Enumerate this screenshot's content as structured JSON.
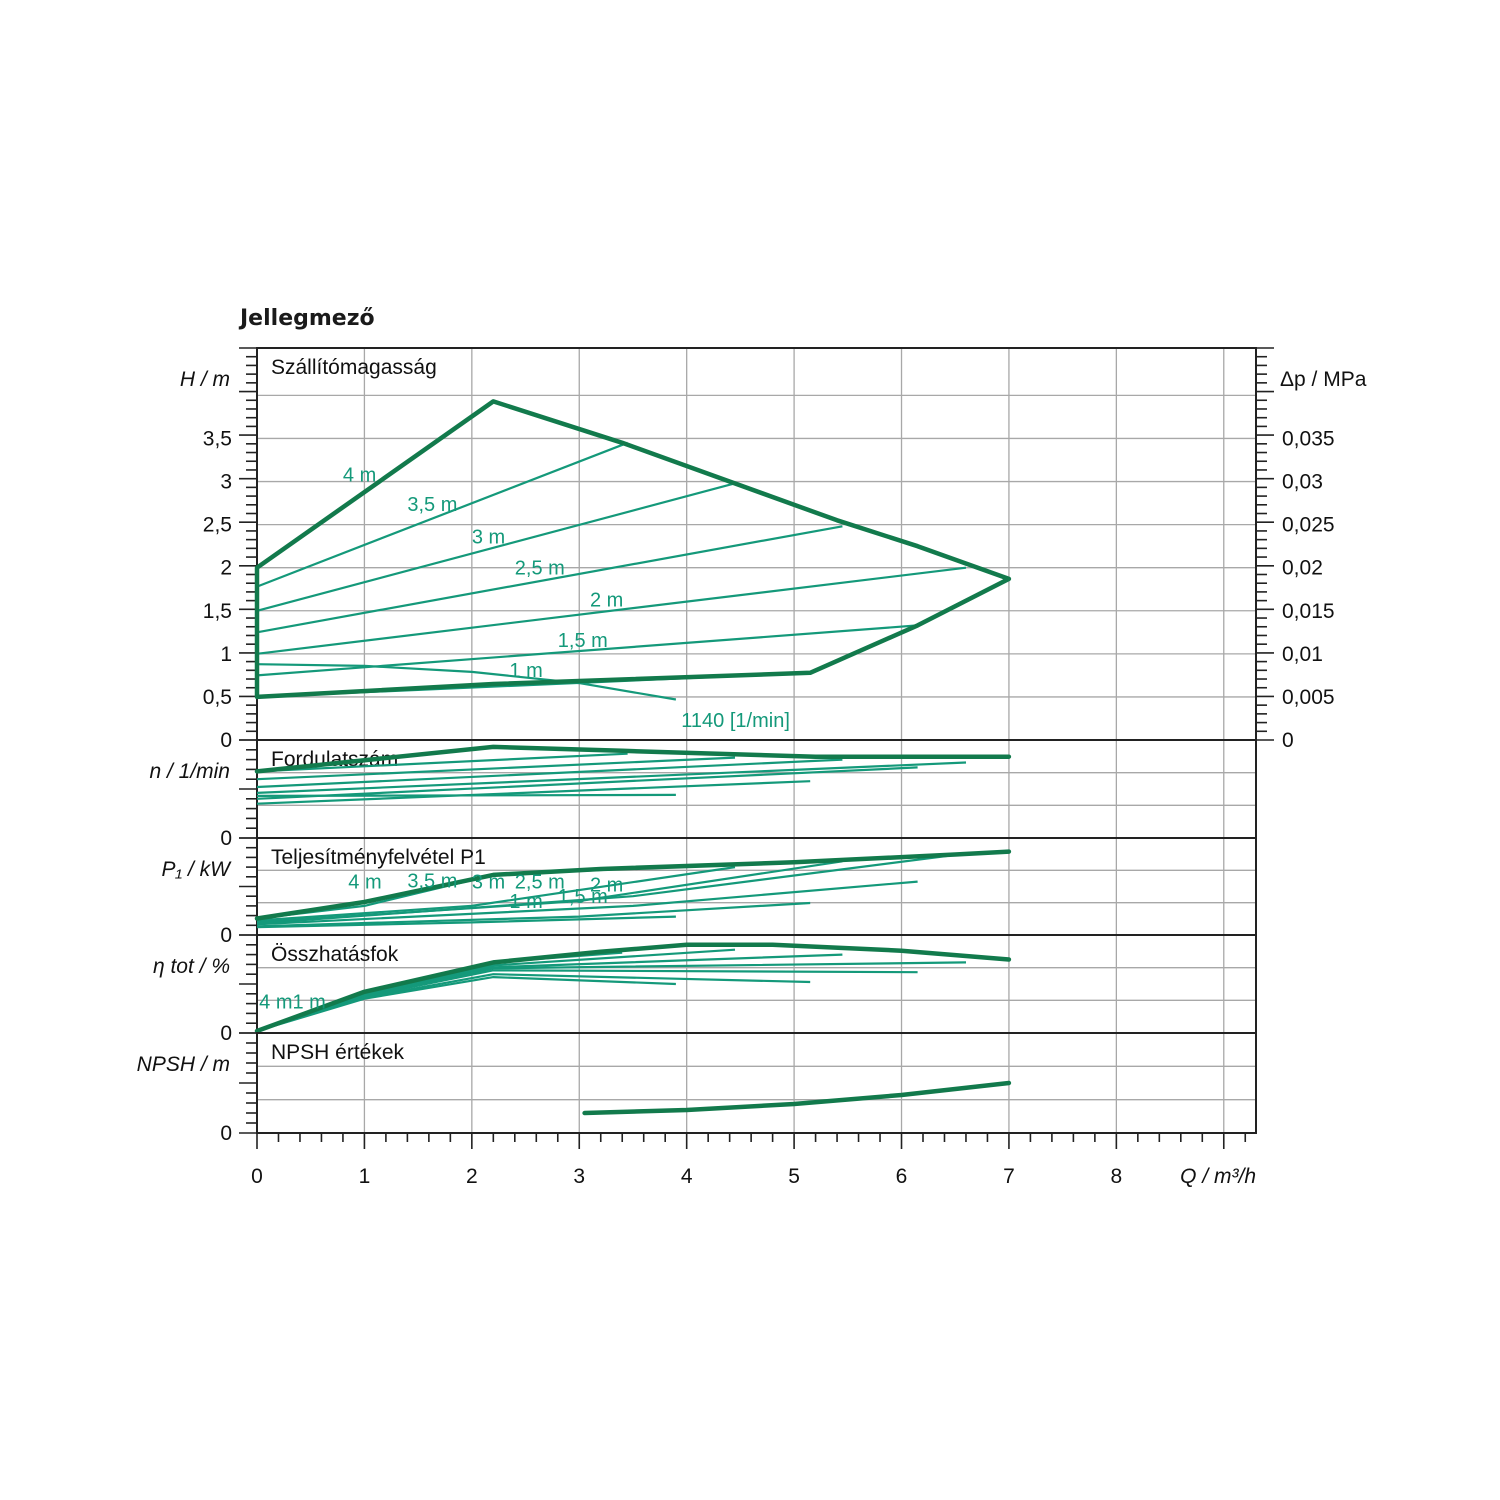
{
  "title": "Jellegmező",
  "chart_data": {
    "type": "line",
    "x_axis": {
      "label": "Q / m³/h",
      "range": [
        0,
        9.3
      ],
      "ticks": [
        "0",
        "1",
        "2",
        "3",
        "4",
        "5",
        "6",
        "7",
        "8"
      ]
    },
    "colors": {
      "envelope": "#127a4c",
      "curves": "#14997a",
      "grid": "#a8a8a8",
      "axes": "#222222"
    },
    "panels": [
      {
        "id": "head",
        "title": "Szállítómagasság",
        "ylabel": "H / m",
        "ylim": [
          0,
          4.55
        ],
        "yticks": [
          {
            "v": 0,
            "t": "0"
          },
          {
            "v": 0.5,
            "t": "0,5"
          },
          {
            "v": 1,
            "t": "1"
          },
          {
            "v": 1.5,
            "t": "1,5"
          },
          {
            "v": 2,
            "t": "2"
          },
          {
            "v": 2.5,
            "t": "2,5"
          },
          {
            "v": 3,
            "t": "3"
          },
          {
            "v": 3.5,
            "t": "3,5"
          }
        ],
        "right_axis": {
          "label": "Δp / MPa",
          "ticks": [
            {
              "v": 0,
              "t": "0"
            },
            {
              "v": 0.5,
              "t": "0,005"
            },
            {
              "v": 1,
              "t": "0,01"
            },
            {
              "v": 1.5,
              "t": "0,015"
            },
            {
              "v": 2,
              "t": "0,02"
            },
            {
              "v": 2.5,
              "t": "0,025"
            },
            {
              "v": 3,
              "t": "0,03"
            },
            {
              "v": 3.5,
              "t": "0,035"
            }
          ]
        },
        "envelope": [
          [
            0,
            0.5
          ],
          [
            2.2,
            0.65
          ],
          [
            5.15,
            0.78
          ],
          [
            6.15,
            1.33
          ],
          [
            7,
            1.87
          ],
          [
            6.15,
            2.25
          ],
          [
            5.4,
            2.55
          ],
          [
            4.4,
            3.0
          ],
          [
            3.4,
            3.45
          ],
          [
            2.2,
            3.93
          ],
          [
            0,
            2.0
          ],
          [
            0,
            0.5
          ]
        ],
        "series": [
          {
            "name": "4 m",
            "points": [
              [
                0,
                1.78
              ],
              [
                3.45,
                3.45
              ]
            ]
          },
          {
            "name": "3,5 m",
            "points": [
              [
                0,
                1.5
              ],
              [
                4.45,
                2.98
              ]
            ]
          },
          {
            "name": "3 m",
            "points": [
              [
                0,
                1.25
              ],
              [
                5.45,
                2.48
              ]
            ]
          },
          {
            "name": "2,5 m",
            "points": [
              [
                0,
                1.0
              ],
              [
                6.6,
                2.0
              ]
            ]
          },
          {
            "name": "2 m",
            "points": [
              [
                0,
                0.75
              ],
              [
                6.15,
                1.33
              ]
            ]
          },
          {
            "name": "1,5 m",
            "points": [
              [
                0,
                0.5
              ],
              [
                5.15,
                0.78
              ]
            ]
          },
          {
            "name": "1 m",
            "points": [
              [
                0,
                0.88
              ],
              [
                1.0,
                0.86
              ],
              [
                2.0,
                0.79
              ],
              [
                3.0,
                0.66
              ],
              [
                3.9,
                0.47
              ]
            ]
          }
        ],
        "curve_labels": [
          {
            "text": "4 m",
            "x": 0.8,
            "y": 3.0
          },
          {
            "text": "3,5 m",
            "x": 1.4,
            "y": 2.66
          },
          {
            "text": "3 m",
            "x": 2.0,
            "y": 2.28
          },
          {
            "text": "2,5 m",
            "x": 2.4,
            "y": 1.92
          },
          {
            "text": "2 m",
            "x": 3.1,
            "y": 1.55
          },
          {
            "text": "1,5 m",
            "x": 2.8,
            "y": 1.08
          },
          {
            "text": "1 m",
            "x": 2.35,
            "y": 0.73
          },
          {
            "text": "1140 [1/min]",
            "x": 3.95,
            "y": 0.15
          }
        ]
      },
      {
        "id": "speed",
        "title": "Fordulatszám",
        "ylabel": "n / 1/min",
        "ylim": [
          0,
          1.0
        ],
        "yticks": [
          {
            "v": 0,
            "t": "0"
          }
        ],
        "envelope": [
          [
            0,
            0.68
          ],
          [
            2.2,
            0.93
          ],
          [
            3.4,
            0.89
          ],
          [
            5.2,
            0.83
          ],
          [
            7,
            0.83
          ]
        ],
        "series": [
          {
            "name": "4 m",
            "points": [
              [
                0,
                0.68
              ],
              [
                3.45,
                0.86
              ]
            ]
          },
          {
            "name": "3,5 m",
            "points": [
              [
                0,
                0.6
              ],
              [
                4.45,
                0.82
              ]
            ]
          },
          {
            "name": "3 m",
            "points": [
              [
                0,
                0.52
              ],
              [
                5.45,
                0.8
              ]
            ]
          },
          {
            "name": "2,5 m",
            "points": [
              [
                0,
                0.46
              ],
              [
                6.6,
                0.77
              ]
            ]
          },
          {
            "name": "2 m",
            "points": [
              [
                0,
                0.4
              ],
              [
                6.15,
                0.72
              ]
            ]
          },
          {
            "name": "1,5 m",
            "points": [
              [
                0,
                0.35
              ],
              [
                5.15,
                0.58
              ]
            ]
          },
          {
            "name": "1 m",
            "points": [
              [
                0,
                0.43
              ],
              [
                3.9,
                0.44
              ]
            ]
          }
        ]
      },
      {
        "id": "power",
        "title": "Teljesítményfelvétel P1",
        "ylabel": "P₁ / kW",
        "ylim": [
          0,
          1.0
        ],
        "yticks": [
          {
            "v": 0,
            "t": "0"
          }
        ],
        "envelope": [
          [
            0,
            0.17
          ],
          [
            1.0,
            0.34
          ],
          [
            2.2,
            0.62
          ],
          [
            3.2,
            0.68
          ],
          [
            5.0,
            0.75
          ],
          [
            6.5,
            0.83
          ],
          [
            7,
            0.86
          ]
        ],
        "series": [
          {
            "name": "4 m",
            "points": [
              [
                0,
                0.17
              ],
              [
                1.0,
                0.3
              ],
              [
                2.2,
                0.62
              ],
              [
                3.4,
                0.68
              ]
            ]
          },
          {
            "name": "3,5 m",
            "points": [
              [
                0,
                0.15
              ],
              [
                2.0,
                0.3
              ],
              [
                4.45,
                0.7
              ]
            ]
          },
          {
            "name": "3 m",
            "points": [
              [
                0,
                0.13
              ],
              [
                3.0,
                0.35
              ],
              [
                5.45,
                0.76
              ]
            ]
          },
          {
            "name": "2,5 m",
            "points": [
              [
                0,
                0.12
              ],
              [
                3.5,
                0.4
              ],
              [
                6.6,
                0.84
              ]
            ]
          },
          {
            "name": "2 m",
            "points": [
              [
                0,
                0.11
              ],
              [
                3.5,
                0.3
              ],
              [
                6.15,
                0.55
              ]
            ]
          },
          {
            "name": "1,5 m",
            "points": [
              [
                0,
                0.09
              ],
              [
                3.0,
                0.19
              ],
              [
                5.15,
                0.33
              ]
            ]
          },
          {
            "name": "1 m",
            "points": [
              [
                0,
                0.08
              ],
              [
                2.0,
                0.13
              ],
              [
                3.9,
                0.19
              ]
            ]
          }
        ],
        "curve_labels": [
          {
            "text": "4 m",
            "x": 0.85,
            "y": 0.48
          },
          {
            "text": "3,5 m",
            "x": 1.4,
            "y": 0.49
          },
          {
            "text": "3 m",
            "x": 2.0,
            "y": 0.48
          },
          {
            "text": "2,5 m",
            "x": 2.4,
            "y": 0.48
          },
          {
            "text": "2 m",
            "x": 3.1,
            "y": 0.45
          },
          {
            "text": "1 m",
            "x": 2.35,
            "y": 0.28
          },
          {
            "text": "1,5 m",
            "x": 2.8,
            "y": 0.33
          }
        ]
      },
      {
        "id": "efficiency",
        "title": "Összhatásfok",
        "ylabel": "η tot / %",
        "ylim": [
          0,
          1.0
        ],
        "yticks": [
          {
            "v": 0,
            "t": "0"
          }
        ],
        "envelope": [
          [
            0,
            0.02
          ],
          [
            1.0,
            0.42
          ],
          [
            2.2,
            0.72
          ],
          [
            3.2,
            0.83
          ],
          [
            4.0,
            0.9
          ],
          [
            4.8,
            0.9
          ],
          [
            6.0,
            0.84
          ],
          [
            7,
            0.75
          ]
        ],
        "series": [
          {
            "name": "4 m",
            "points": [
              [
                0,
                0.02
              ],
              [
                1.0,
                0.42
              ],
              [
                2.2,
                0.72
              ],
              [
                3.4,
                0.82
              ]
            ]
          },
          {
            "name": "3,5 m",
            "points": [
              [
                0,
                0.02
              ],
              [
                1.0,
                0.4
              ],
              [
                2.2,
                0.69
              ],
              [
                4.45,
                0.85
              ]
            ]
          },
          {
            "name": "3 m",
            "points": [
              [
                0,
                0.02
              ],
              [
                1.0,
                0.39
              ],
              [
                2.2,
                0.67
              ],
              [
                5.45,
                0.8
              ]
            ]
          },
          {
            "name": "2,5 m",
            "points": [
              [
                0,
                0.02
              ],
              [
                1.0,
                0.38
              ],
              [
                2.2,
                0.66
              ],
              [
                6.6,
                0.72
              ]
            ]
          },
          {
            "name": "2 m",
            "points": [
              [
                0,
                0.02
              ],
              [
                1.0,
                0.37
              ],
              [
                2.2,
                0.64
              ],
              [
                6.15,
                0.62
              ]
            ]
          },
          {
            "name": "1,5 m",
            "points": [
              [
                0,
                0.02
              ],
              [
                1.0,
                0.36
              ],
              [
                2.2,
                0.6
              ],
              [
                5.15,
                0.52
              ]
            ]
          },
          {
            "name": "1 m",
            "points": [
              [
                0,
                0.02
              ],
              [
                1.0,
                0.35
              ],
              [
                2.2,
                0.57
              ],
              [
                3.9,
                0.5
              ]
            ]
          }
        ],
        "curve_labels": [
          {
            "text": "4 m1 m",
            "x": 0.02,
            "y": 0.25
          }
        ]
      },
      {
        "id": "npsh",
        "title": "NPSH értékek",
        "ylabel": "NPSH / m",
        "ylim": [
          0,
          1.0
        ],
        "yticks": [
          {
            "v": 0,
            "t": "0"
          }
        ],
        "envelope": [
          [
            3.05,
            0.2
          ],
          [
            4.0,
            0.23
          ],
          [
            5.0,
            0.29
          ],
          [
            6.0,
            0.38
          ],
          [
            7,
            0.5
          ]
        ],
        "series": []
      }
    ]
  }
}
